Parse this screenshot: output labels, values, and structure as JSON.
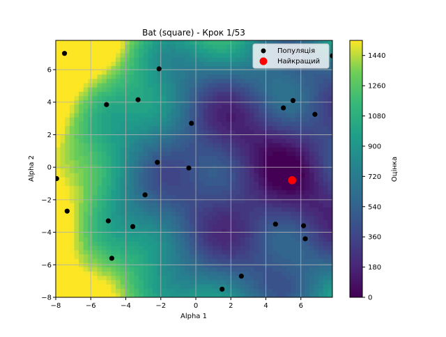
{
  "chart_data": {
    "type": "scatter",
    "title": "Bat (square) - Крок 1/53",
    "xlabel": "Alpha 1",
    "ylabel": "Alpha 2",
    "xlim": [
      -8,
      7.8
    ],
    "ylim": [
      -8,
      7.8
    ],
    "xticks": [
      -8,
      -6,
      -4,
      -2,
      0,
      2,
      4,
      6
    ],
    "yticks": [
      -8,
      -6,
      -4,
      -2,
      0,
      2,
      4,
      6
    ],
    "grid": true,
    "legend_position": "top-right",
    "background": {
      "type": "contour-heatmap",
      "colormap": "viridis",
      "vmin": 0,
      "vmax": 1530,
      "minimum": [
        4.5,
        -0.5
      ]
    },
    "colorbar": {
      "label": "Оцінка",
      "ticks": [
        0,
        180,
        360,
        540,
        720,
        900,
        1080,
        1260,
        1440
      ]
    },
    "series": [
      {
        "name": "Популяція",
        "color": "#000000",
        "points": [
          [
            -7.5,
            7.0
          ],
          [
            -2.1,
            6.05
          ],
          [
            -5.1,
            3.85
          ],
          [
            -3.3,
            4.15
          ],
          [
            -0.25,
            2.7
          ],
          [
            -2.2,
            0.3
          ],
          [
            -0.4,
            -0.05
          ],
          [
            -7.95,
            -0.7
          ],
          [
            -2.9,
            -1.7
          ],
          [
            -7.35,
            -2.7
          ],
          [
            -5.0,
            -3.3
          ],
          [
            -3.6,
            -3.65
          ],
          [
            -4.8,
            -5.6
          ],
          [
            1.5,
            -7.5
          ],
          [
            2.6,
            -6.7
          ],
          [
            4.55,
            -3.5
          ],
          [
            6.15,
            -3.6
          ],
          [
            6.25,
            -4.4
          ],
          [
            5.0,
            3.65
          ],
          [
            5.55,
            4.1
          ],
          [
            6.8,
            3.25
          ],
          [
            7.8,
            6.85
          ]
        ]
      },
      {
        "name": "Найкращий",
        "color": "#ff0000",
        "points": [
          [
            5.5,
            -0.8
          ]
        ]
      }
    ]
  }
}
